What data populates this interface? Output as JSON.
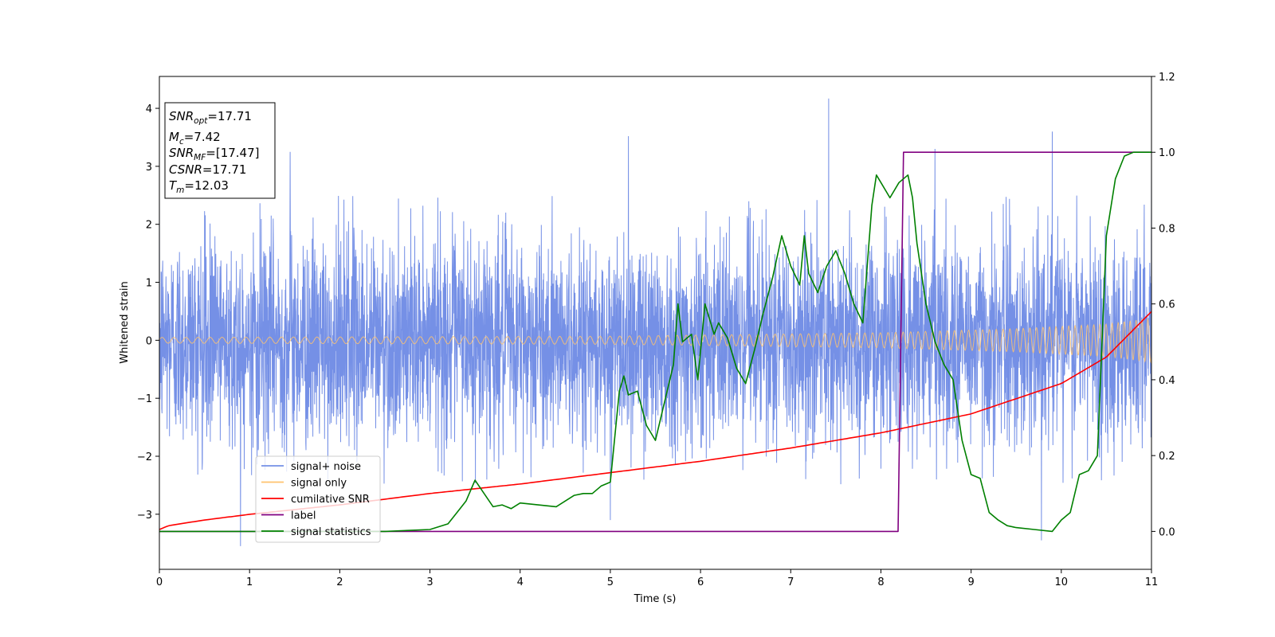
{
  "chart_data": {
    "type": "line",
    "xlabel": "Time (s)",
    "ylabel": "Whitened strain",
    "xlim": [
      0,
      11
    ],
    "ylim": [
      -3.95,
      4.55
    ],
    "y2lim": [
      -0.1,
      1.2
    ],
    "xticks": [
      "0",
      "1",
      "2",
      "3",
      "4",
      "5",
      "6",
      "7",
      "8",
      "9",
      "10",
      "11"
    ],
    "yticks": [
      "−3",
      "−2",
      "−1",
      "0",
      "1",
      "2",
      "3",
      "4"
    ],
    "y2ticks": [
      "0.0",
      "0.2",
      "0.4",
      "0.6",
      "0.8",
      "1.0",
      "1.2"
    ],
    "grid": false,
    "legend_position": "lower-left",
    "annotation": {
      "lines": [
        {
          "var": "SNR",
          "sub": "opt",
          "value": "=17.71"
        },
        {
          "var": "M",
          "sub": "c",
          "value": "=7.42"
        },
        {
          "var": "SNR",
          "sub": "MF",
          "value": "=[17.47]"
        },
        {
          "var": "CSNR",
          "sub": "",
          "value": "=17.71"
        },
        {
          "var": "T",
          "sub": "m",
          "value": "=12.03"
        }
      ]
    },
    "series": [
      {
        "name": "signal+ noise",
        "axis": "left",
        "color": "#7590e6",
        "kind": "noise",
        "sigma": 1.0,
        "envelope_x": [
          0,
          11
        ],
        "envelope_y": [
          -2.5,
          2.5
        ],
        "spikes": [
          [
            0.9,
            -3.55
          ],
          [
            1.45,
            3.25
          ],
          [
            5.2,
            3.52
          ],
          [
            5.0,
            -3.1
          ],
          [
            7.42,
            4.17
          ],
          [
            8.6,
            3.3
          ],
          [
            9.9,
            3.6
          ],
          [
            9.78,
            -3.45
          ],
          [
            11.0,
            3.05
          ]
        ]
      },
      {
        "name": "signal only",
        "axis": "left",
        "color": "#ffc36e",
        "kind": "chirp",
        "amplitude": {
          "x": [
            0,
            5,
            8,
            9.5,
            10.5,
            11
          ],
          "y": [
            0.05,
            0.07,
            0.13,
            0.2,
            0.28,
            0.38
          ]
        }
      },
      {
        "name": "cumilative SNR",
        "axis": "right",
        "color": "#ff0000",
        "x": [
          0,
          0.1,
          0.5,
          1,
          2,
          3,
          4,
          5,
          6,
          7,
          8,
          9,
          10,
          10.5,
          11
        ],
        "y": [
          0.005,
          0.015,
          0.03,
          0.045,
          0.07,
          0.1,
          0.125,
          0.155,
          0.185,
          0.22,
          0.26,
          0.31,
          0.39,
          0.46,
          0.58
        ]
      },
      {
        "name": "label",
        "axis": "right",
        "color": "#800080",
        "x": [
          0,
          8.19,
          8.25,
          11
        ],
        "y": [
          0,
          0,
          1,
          1
        ]
      },
      {
        "name": "signal statistics",
        "axis": "right",
        "color": "#008000",
        "x": [
          0,
          2.5,
          3.0,
          3.2,
          3.3,
          3.4,
          3.5,
          3.6,
          3.7,
          3.8,
          3.9,
          4.0,
          4.2,
          4.4,
          4.6,
          4.7,
          4.8,
          4.9,
          5.0,
          5.1,
          5.15,
          5.2,
          5.3,
          5.4,
          5.5,
          5.6,
          5.7,
          5.75,
          5.8,
          5.9,
          5.97,
          6.05,
          6.15,
          6.2,
          6.3,
          6.4,
          6.5,
          6.6,
          6.7,
          6.8,
          6.9,
          7.0,
          7.1,
          7.15,
          7.2,
          7.3,
          7.4,
          7.5,
          7.6,
          7.7,
          7.8,
          7.9,
          7.95,
          8.0,
          8.1,
          8.2,
          8.3,
          8.35,
          8.4,
          8.5,
          8.6,
          8.7,
          8.8,
          8.9,
          9.0,
          9.1,
          9.2,
          9.3,
          9.4,
          9.5,
          9.7,
          9.9,
          10.0,
          10.1,
          10.2,
          10.3,
          10.4,
          10.5,
          10.6,
          10.7,
          10.8,
          11
        ],
        "y": [
          0.0,
          0.0,
          0.005,
          0.02,
          0.05,
          0.08,
          0.135,
          0.1,
          0.065,
          0.07,
          0.06,
          0.075,
          0.07,
          0.065,
          0.095,
          0.1,
          0.1,
          0.12,
          0.13,
          0.37,
          0.41,
          0.36,
          0.37,
          0.28,
          0.24,
          0.34,
          0.44,
          0.6,
          0.5,
          0.52,
          0.4,
          0.6,
          0.52,
          0.55,
          0.51,
          0.43,
          0.39,
          0.48,
          0.58,
          0.67,
          0.78,
          0.7,
          0.65,
          0.78,
          0.68,
          0.63,
          0.7,
          0.74,
          0.68,
          0.6,
          0.55,
          0.86,
          0.94,
          0.92,
          0.88,
          0.92,
          0.94,
          0.88,
          0.76,
          0.6,
          0.5,
          0.44,
          0.4,
          0.24,
          0.15,
          0.14,
          0.05,
          0.03,
          0.015,
          0.01,
          0.005,
          0.0,
          0.03,
          0.05,
          0.15,
          0.16,
          0.2,
          0.78,
          0.93,
          0.99,
          1.0,
          1.0
        ]
      }
    ]
  }
}
